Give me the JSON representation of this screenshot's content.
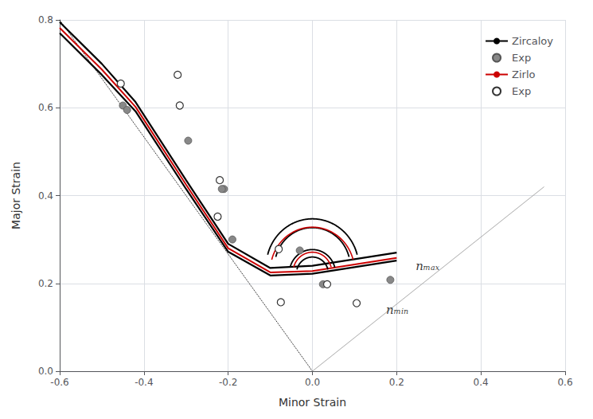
{
  "chart_data": {
    "type": "line",
    "xlabel": "Minor Strain",
    "ylabel": "Major Strain",
    "xlim": [
      -0.6,
      0.6
    ],
    "ylim": [
      0.0,
      0.8
    ],
    "xticks": [
      -0.6,
      -0.4,
      -0.2,
      0.0,
      0.2,
      0.4,
      0.6
    ],
    "yticks": [
      0.0,
      0.2,
      0.4,
      0.6,
      0.8
    ],
    "grid": true,
    "legend": "upper right",
    "series": [
      {
        "type": "line",
        "color": "#000000",
        "line_style": "dotted",
        "x": [
          -0.6,
          0.0
        ],
        "values": [
          0.8,
          0.0
        ]
      },
      {
        "type": "line",
        "color": "#aaaaaa",
        "line_style": "solid",
        "x": [
          0.0,
          0.55
        ],
        "values": [
          0.0,
          0.42
        ]
      },
      {
        "name": "Zircaloy",
        "type": "line",
        "color": "#000000",
        "line_style": "solid",
        "x": [
          -0.6,
          -0.5,
          -0.42,
          -0.3,
          -0.2,
          -0.1,
          0.0,
          0.1,
          0.2
        ],
        "values": [
          0.795,
          0.7,
          0.613,
          0.435,
          0.29,
          0.235,
          0.24,
          0.255,
          0.27
        ]
      },
      {
        "type": "line",
        "color": "#000000",
        "line_style": "solid",
        "x": [
          -0.6,
          -0.5,
          -0.42,
          -0.3,
          -0.2,
          -0.1,
          0.0,
          0.1,
          0.2
        ],
        "values": [
          0.77,
          0.675,
          0.592,
          0.415,
          0.272,
          0.218,
          0.222,
          0.237,
          0.252
        ]
      },
      {
        "name": "Exp",
        "type": "scatter",
        "color": "#888888",
        "marker": "circle",
        "x": [
          -0.45,
          -0.44,
          -0.295,
          -0.21,
          -0.215,
          -0.19,
          -0.03,
          0.025,
          0.185
        ],
        "values": [
          0.605,
          0.595,
          0.525,
          0.415,
          0.415,
          0.3,
          0.275,
          0.198,
          0.208
        ]
      },
      {
        "name": "Zirlo",
        "type": "line",
        "color": "#cc0000",
        "line_style": "solid",
        "x": [
          -0.6,
          -0.5,
          -0.42,
          -0.3,
          -0.2,
          -0.1,
          0.0,
          0.1,
          0.2
        ],
        "values": [
          0.782,
          0.687,
          0.602,
          0.425,
          0.28,
          0.225,
          0.228,
          0.243,
          0.258
        ]
      },
      {
        "name": "Exp",
        "type": "scatter",
        "color": "#333333",
        "marker": "open_circle",
        "x": [
          -0.455,
          -0.32,
          -0.315,
          -0.22,
          -0.225,
          -0.08,
          -0.075,
          0.035,
          0.105
        ],
        "values": [
          0.655,
          0.675,
          0.605,
          0.435,
          0.352,
          0.278,
          0.157,
          0.198,
          0.155
        ]
      },
      {
        "type": "arc",
        "color": "#000000",
        "cx": 0.0,
        "cy": 0.237,
        "r": 0.11,
        "theta1": 15,
        "theta2": 165
      },
      {
        "type": "arc",
        "color": "#000000",
        "cx": 0.0,
        "cy": 0.237,
        "r": 0.09,
        "theta1": 15,
        "theta2": 165
      },
      {
        "type": "arc",
        "color": "#cc0000",
        "cx": 0.0,
        "cy": 0.228,
        "r": 0.1,
        "theta1": 15,
        "theta2": 165
      },
      {
        "type": "arc",
        "color": "#000000",
        "cx": 0.0,
        "cy": 0.222,
        "r": 0.055,
        "theta1": 15,
        "theta2": 165
      },
      {
        "type": "arc",
        "color": "#000000",
        "cx": 0.0,
        "cy": 0.222,
        "r": 0.038,
        "theta1": 15,
        "theta2": 165
      },
      {
        "type": "arc",
        "color": "#cc0000",
        "cx": 0.0,
        "cy": 0.225,
        "r": 0.046,
        "theta1": 15,
        "theta2": 165
      }
    ],
    "annotations": [
      {
        "text": "nₘₐₓ",
        "x": 0.245,
        "y": 0.24
      },
      {
        "text": "nₘᵢₙ",
        "x": 0.175,
        "y": 0.14
      }
    ]
  }
}
